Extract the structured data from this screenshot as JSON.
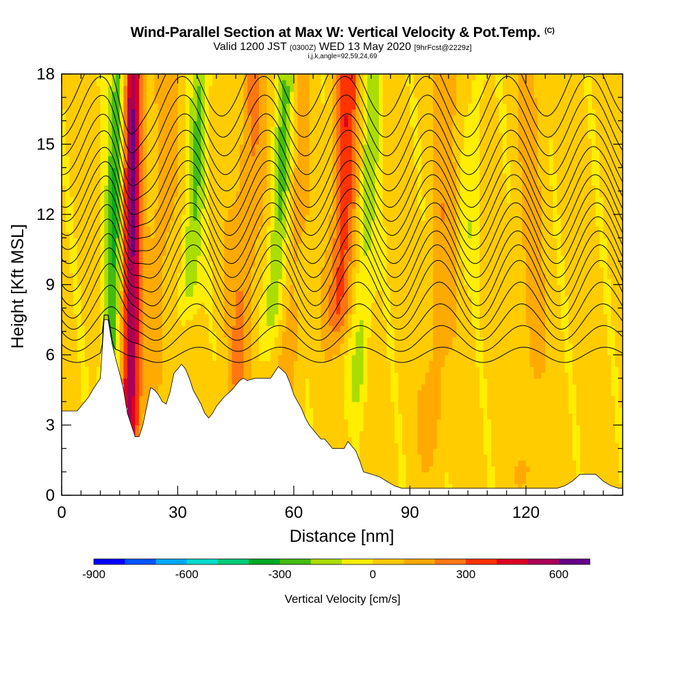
{
  "header": {
    "title": "Wind-Parallel Section at Max W: Vertical Velocity & Pot.Temp.",
    "copyright": "(C)",
    "valid_prefix": "Valid 1200 JST",
    "valid_utc": "(0300Z)",
    "valid_date": "WED 13 May 2020",
    "valid_fcst": "[9hrFcst@2229z]",
    "indices": "i,j,k,angle=92,59,24,69"
  },
  "chart_data": {
    "type": "heatmap",
    "title": "Wind-Parallel Section at Max W: Vertical Velocity & Pot.Temp.",
    "xlabel": "Distance [nm]",
    "ylabel": "Height [Kft MSL]",
    "xlim": [
      0,
      145
    ],
    "ylim": [
      0,
      18
    ],
    "x_ticks": [
      0,
      30,
      60,
      90,
      120
    ],
    "y_ticks": [
      0,
      3,
      6,
      9,
      12,
      15,
      18
    ],
    "x_tick_labels": [
      "0",
      "30",
      "60",
      "90",
      "120"
    ],
    "y_tick_labels": [
      "0",
      "3",
      "6",
      "9",
      "12",
      "15",
      "18"
    ],
    "colorbar": {
      "label": "Vertical Velocity [cm/s]",
      "range": [
        -900,
        700
      ],
      "tick_values": [
        -900,
        -600,
        -300,
        0,
        300,
        600
      ],
      "tick_labels": [
        "-900",
        "-600",
        "-300",
        "0",
        "300",
        "600"
      ],
      "colors": [
        "#0000ff",
        "#0055ff",
        "#00aaff",
        "#00ddcc",
        "#00cc77",
        "#00aa22",
        "#44bb11",
        "#aadd00",
        "#ffee00",
        "#ffcc00",
        "#ffaa00",
        "#ff7711",
        "#ff3300",
        "#dd0022",
        "#aa0055",
        "#660088"
      ]
    },
    "terrain_profile": {
      "x": [
        0,
        4,
        5,
        6,
        7,
        8,
        10,
        11,
        12,
        13,
        14,
        15,
        16,
        17,
        18,
        19,
        20,
        21,
        22,
        23,
        24,
        25,
        26,
        27,
        28,
        29,
        31,
        32,
        33,
        34,
        35,
        36,
        37,
        38,
        39,
        40,
        42,
        44,
        45,
        46,
        47,
        48,
        50,
        52,
        54,
        56,
        58,
        59,
        60,
        61,
        62,
        63,
        64,
        65,
        66,
        67,
        68,
        69,
        70,
        71,
        72,
        73,
        74,
        75,
        76,
        77,
        78,
        80,
        82,
        84,
        86,
        88,
        94,
        100,
        106,
        112,
        114,
        116,
        118,
        120,
        122,
        124,
        126,
        128,
        130,
        132,
        134,
        136,
        138,
        140,
        142,
        144,
        145
      ],
      "height_kft": [
        3.6,
        3.6,
        3.8,
        4.0,
        4.2,
        4.5,
        5.0,
        7.5,
        7.5,
        6.5,
        5.8,
        5.2,
        4.5,
        3.5,
        3.0,
        2.5,
        2.5,
        3.0,
        3.8,
        4.6,
        4.5,
        4.3,
        4.0,
        3.9,
        4.4,
        5.2,
        5.6,
        5.4,
        5.0,
        4.5,
        4.2,
        3.9,
        3.5,
        3.3,
        3.5,
        3.8,
        4.2,
        4.5,
        4.7,
        4.9,
        5.0,
        4.9,
        5.0,
        5.0,
        5.0,
        5.5,
        5.2,
        4.8,
        4.3,
        4.0,
        3.7,
        3.3,
        3.0,
        2.8,
        2.6,
        2.4,
        2.4,
        2.2,
        2.0,
        2.0,
        2.0,
        2.0,
        2.3,
        2.1,
        1.9,
        1.5,
        1.0,
        0.9,
        0.8,
        0.6,
        0.4,
        0.3,
        0.3,
        0.3,
        0.3,
        0.3,
        0.3,
        0.3,
        0.3,
        0.3,
        0.3,
        0.3,
        0.3,
        0.3,
        0.4,
        0.6,
        0.9,
        0.9,
        0.9,
        0.6,
        0.4,
        0.3,
        0.3
      ]
    },
    "updrafts": [
      {
        "x_center": 18,
        "width_nm": 2.4,
        "tilt_nm_per_kft": 0.05,
        "bottom_kft": 3.0,
        "peak_cms": 550
      },
      {
        "x_center": 72,
        "width_nm": 3.0,
        "tilt_nm_per_kft": 0.25,
        "bottom_kft": 8.0,
        "peak_cms": 320
      },
      {
        "x_center": 47,
        "width_nm": 3.5,
        "tilt_nm_per_kft": 0.3,
        "bottom_kft": 5.0,
        "peak_cms": 160
      },
      {
        "x_center": 25,
        "width_nm": 3.0,
        "tilt_nm_per_kft": 0.2,
        "bottom_kft": 6.0,
        "peak_cms": 120
      },
      {
        "x_center": 60,
        "width_nm": 2.5,
        "tilt_nm_per_kft": 0.2,
        "bottom_kft": 6.0,
        "peak_cms": 110
      },
      {
        "x_center": 98,
        "width_nm": 3.0,
        "tilt_nm_per_kft": 0.3,
        "bottom_kft": 3.0,
        "peak_cms": 120
      },
      {
        "x_center": 121,
        "width_nm": 3.0,
        "tilt_nm_per_kft": 0.0,
        "bottom_kft": 1.0,
        "peak_cms": 90
      }
    ],
    "downdrafts": [
      {
        "x_center": 13,
        "width_nm": 2.2,
        "tilt_nm_per_kft": 0.2,
        "bottom_kft": 4.5,
        "peak_cms": -330
      },
      {
        "x_center": 33,
        "width_nm": 2.5,
        "tilt_nm_per_kft": 0.35,
        "bottom_kft": 9.0,
        "peak_cms": -230
      },
      {
        "x_center": 55,
        "width_nm": 2.5,
        "tilt_nm_per_kft": 0.4,
        "bottom_kft": 8.0,
        "peak_cms": -250
      },
      {
        "x_center": 78,
        "width_nm": 2.5,
        "tilt_nm_per_kft": 0.3,
        "bottom_kft": 5.0,
        "peak_cms": -180
      },
      {
        "x_center": 105,
        "width_nm": 2.5,
        "tilt_nm_per_kft": 0.3,
        "bottom_kft": 11.0,
        "peak_cms": -100
      }
    ],
    "isentropes": {
      "base_kft": [
        6.0,
        6.7,
        7.4,
        8.1,
        8.8,
        9.4,
        10.0,
        10.6,
        11.2,
        11.8,
        12.4,
        13.0,
        13.6,
        14.3,
        15.0,
        15.8,
        16.6,
        17.5
      ],
      "wave_amp_kft": 1.3,
      "wavelength_nm": 21.0
    }
  }
}
